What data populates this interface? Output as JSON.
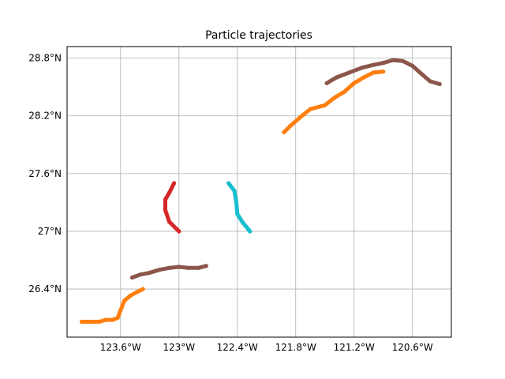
{
  "chart_data": {
    "type": "scatter",
    "title": "Particle trajectories",
    "xlabel": "",
    "ylabel": "",
    "grid": true,
    "xlim": [
      -124.15,
      -120.2
    ],
    "ylim": [
      25.9,
      28.92
    ],
    "x_ticks": [
      {
        "value": -123.6,
        "label": "123.6°W"
      },
      {
        "value": -123.0,
        "label": "123°W"
      },
      {
        "value": -122.4,
        "label": "122.4°W"
      },
      {
        "value": -121.8,
        "label": "121.8°W"
      },
      {
        "value": -121.2,
        "label": "121.2°W"
      },
      {
        "value": -120.6,
        "label": "120.6°W"
      }
    ],
    "y_ticks": [
      {
        "value": 26.4,
        "label": "26.4°N"
      },
      {
        "value": 27.0,
        "label": "27°N"
      },
      {
        "value": 27.6,
        "label": "27.6°N"
      },
      {
        "value": 28.2,
        "label": "28.2°N"
      },
      {
        "value": 28.8,
        "label": "28.8°N"
      }
    ],
    "series": [
      {
        "color": "#ff7f0e",
        "points": [
          [
            -124.0,
            26.06
          ],
          [
            -123.9,
            26.06
          ],
          [
            -123.82,
            26.06
          ],
          [
            -123.75,
            26.08
          ],
          [
            -123.68,
            26.08
          ],
          [
            -123.63,
            26.1
          ],
          [
            -123.6,
            26.18
          ],
          [
            -123.56,
            26.28
          ],
          [
            -123.5,
            26.33
          ],
          [
            -123.43,
            26.37
          ],
          [
            -123.37,
            26.4
          ]
        ]
      },
      {
        "color": "#8c564b",
        "points": [
          [
            -123.48,
            26.52
          ],
          [
            -123.4,
            26.55
          ],
          [
            -123.3,
            26.57
          ],
          [
            -123.2,
            26.6
          ],
          [
            -123.1,
            26.62
          ],
          [
            -123.0,
            26.63
          ],
          [
            -122.9,
            26.62
          ],
          [
            -122.8,
            26.62
          ],
          [
            -122.72,
            26.64
          ]
        ]
      },
      {
        "color": "#d62728",
        "points": [
          [
            -123.05,
            27.5
          ],
          [
            -123.1,
            27.4
          ],
          [
            -123.14,
            27.33
          ],
          [
            -123.14,
            27.22
          ],
          [
            -123.1,
            27.1
          ],
          [
            -123.0,
            27.0
          ]
        ]
      },
      {
        "color": "#17becf",
        "points": [
          [
            -122.49,
            27.5
          ],
          [
            -122.43,
            27.42
          ],
          [
            -122.41,
            27.3
          ],
          [
            -122.4,
            27.18
          ],
          [
            -122.35,
            27.1
          ],
          [
            -122.27,
            27.0
          ]
        ]
      },
      {
        "color": "#ff7f0e",
        "points": [
          [
            -121.92,
            28.03
          ],
          [
            -121.85,
            28.1
          ],
          [
            -121.76,
            28.18
          ],
          [
            -121.65,
            28.27
          ],
          [
            -121.5,
            28.31
          ],
          [
            -121.4,
            28.39
          ],
          [
            -121.3,
            28.45
          ],
          [
            -121.2,
            28.54
          ],
          [
            -121.1,
            28.6
          ],
          [
            -121.0,
            28.65
          ],
          [
            -120.9,
            28.66
          ]
        ]
      },
      {
        "color": "#8c564b",
        "points": [
          [
            -121.48,
            28.54
          ],
          [
            -121.38,
            28.6
          ],
          [
            -121.25,
            28.65
          ],
          [
            -121.12,
            28.7
          ],
          [
            -121.0,
            28.73
          ],
          [
            -120.9,
            28.75
          ],
          [
            -120.8,
            28.78
          ],
          [
            -120.7,
            28.77
          ],
          [
            -120.6,
            28.72
          ],
          [
            -120.5,
            28.63
          ],
          [
            -120.42,
            28.56
          ],
          [
            -120.32,
            28.53
          ]
        ]
      }
    ]
  }
}
